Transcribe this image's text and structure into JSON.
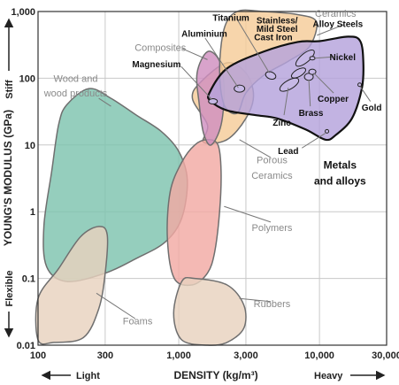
{
  "chart_data": {
    "type": "area",
    "title": "",
    "xlabel": "DENSITY (kg/m³)",
    "ylabel": "YOUNG'S MODULUS (GPa)",
    "x_scale": "log",
    "y_scale": "log",
    "xlim": [
      100,
      30000
    ],
    "ylim": [
      0.01,
      1000
    ],
    "grid": true,
    "x_ticks": [
      {
        "value": 100,
        "label": "100"
      },
      {
        "value": 300,
        "label": "300"
      },
      {
        "value": 1000,
        "label": "1,000"
      },
      {
        "value": 3000,
        "label": "3,000"
      },
      {
        "value": 10000,
        "label": "10,000"
      },
      {
        "value": 30000,
        "label": "30,000"
      }
    ],
    "y_ticks": [
      {
        "value": 1000,
        "label": "1,000"
      },
      {
        "value": 100,
        "label": "100"
      },
      {
        "value": 10,
        "label": "10"
      },
      {
        "value": 1,
        "label": "1"
      },
      {
        "value": 0.1,
        "label": "0.1"
      },
      {
        "value": 0.01,
        "label": "0.01"
      }
    ],
    "axis_words": {
      "stiff": "Stiff",
      "flexible": "Flexible",
      "light": "Light",
      "heavy": "Heavy"
    },
    "series": [
      {
        "name": "Wood and wood products",
        "color": "#7ec3ae",
        "points": [
          [
            160,
            40
          ],
          [
            230,
            70
          ],
          [
            330,
            50
          ],
          [
            500,
            28
          ],
          [
            750,
            16
          ],
          [
            1000,
            8
          ],
          [
            1150,
            3
          ],
          [
            1050,
            0.8
          ],
          [
            800,
            0.35
          ],
          [
            500,
            0.2
          ],
          [
            300,
            0.12
          ],
          [
            160,
            0.09
          ],
          [
            115,
            0.15
          ],
          [
            110,
            0.6
          ],
          [
            125,
            4
          ],
          [
            140,
            20
          ]
        ]
      },
      {
        "name": "Foams",
        "color": "#e8d2be",
        "points": [
          [
            100,
            0.05
          ],
          [
            140,
            0.14
          ],
          [
            200,
            0.42
          ],
          [
            270,
            0.6
          ],
          [
            310,
            0.45
          ],
          [
            300,
            0.12
          ],
          [
            270,
            0.035
          ],
          [
            210,
            0.013
          ],
          [
            130,
            0.011
          ],
          [
            100,
            0.012
          ]
        ]
      },
      {
        "name": "Porous Ceramics",
        "color": "#f5cc98",
        "points": [
          [
            1600,
            20
          ],
          [
            1250,
            50
          ],
          [
            1450,
            90
          ],
          [
            2200,
            170
          ],
          [
            3000,
            120
          ],
          [
            3400,
            55
          ],
          [
            3000,
            25
          ],
          [
            2200,
            12
          ],
          [
            1500,
            11
          ]
        ]
      },
      {
        "name": "Polymers",
        "color": "#f2aaa3",
        "points": [
          [
            1300,
            10
          ],
          [
            1600,
            12
          ],
          [
            1900,
            10
          ],
          [
            2000,
            4
          ],
          [
            1950,
            1
          ],
          [
            1800,
            0.25
          ],
          [
            1600,
            0.12
          ],
          [
            1250,
            0.08
          ],
          [
            930,
            0.1
          ],
          [
            830,
            0.4
          ],
          [
            870,
            2
          ],
          [
            1050,
            5.5
          ]
        ]
      },
      {
        "name": "Rubbers",
        "color": "#e8d2be",
        "points": [
          [
            1050,
            0.09
          ],
          [
            1300,
            0.1
          ],
          [
            2200,
            0.08
          ],
          [
            2900,
            0.04
          ],
          [
            2900,
            0.018
          ],
          [
            2200,
            0.011
          ],
          [
            1600,
            0.01
          ],
          [
            1050,
            0.012
          ],
          [
            920,
            0.03
          ]
        ]
      },
      {
        "name": "Composites",
        "color": "#cf8fc0",
        "points": [
          [
            1400,
            40
          ],
          [
            1350,
            120
          ],
          [
            1600,
            250
          ],
          [
            1950,
            180
          ],
          [
            2100,
            70
          ],
          [
            2000,
            20
          ],
          [
            1700,
            10
          ],
          [
            1500,
            15
          ]
        ]
      },
      {
        "name": "Ceramics",
        "color": "#f5cc98",
        "points": [
          [
            1950,
            130
          ],
          [
            2100,
            550
          ],
          [
            2600,
            1000
          ],
          [
            4000,
            1000
          ],
          [
            7000,
            900
          ],
          [
            9500,
            700
          ],
          [
            8500,
            300
          ],
          [
            6000,
            180
          ],
          [
            4000,
            110
          ],
          [
            3000,
            60
          ],
          [
            2600,
            30
          ],
          [
            2100,
            40
          ]
        ]
      },
      {
        "name": "Metals and alloys",
        "color": "#b4a2dc",
        "points": [
          [
            1650,
            60
          ],
          [
            2200,
            140
          ],
          [
            4000,
            250
          ],
          [
            7000,
            350
          ],
          [
            10000,
            360
          ],
          [
            16000,
            420
          ],
          [
            19500,
            360
          ],
          [
            20500,
            170
          ],
          [
            20000,
            70
          ],
          [
            17000,
            25
          ],
          [
            13000,
            14
          ],
          [
            11000,
            12
          ],
          [
            8000,
            17
          ],
          [
            5000,
            25
          ],
          [
            3500,
            28
          ],
          [
            2200,
            33
          ],
          [
            1700,
            45
          ]
        ]
      }
    ],
    "metal_markers": [
      {
        "name": "Titanium",
        "x": 4500,
        "y": 110,
        "rx": 6,
        "ry": 4,
        "angle": 20
      },
      {
        "name": "Aluminium",
        "x": 2700,
        "y": 70,
        "rx": 6,
        "ry": 4,
        "angle": 0
      },
      {
        "name": "Magnesium",
        "x": 1750,
        "y": 45,
        "rx": 5,
        "ry": 3,
        "angle": 0
      },
      {
        "name": "Stainless/ Mild Steel",
        "x": 7900,
        "y": 200,
        "rx": 13,
        "ry": 5,
        "angle": -40
      },
      {
        "name": "Cast Iron",
        "x": 7100,
        "y": 120,
        "rx": 9,
        "ry": 4,
        "angle": -30
      },
      {
        "name": "Zinc",
        "x": 6100,
        "y": 80,
        "rx": 12,
        "ry": 5,
        "angle": -30
      },
      {
        "name": "Brass",
        "x": 8400,
        "y": 105,
        "rx": 5,
        "ry": 4,
        "angle": 0
      },
      {
        "name": "Copper",
        "x": 8900,
        "y": 125,
        "rx": 4,
        "ry": 3,
        "angle": 0
      },
      {
        "name": "Nickel",
        "x": 8900,
        "y": 200,
        "rx": 3,
        "ry": 2,
        "angle": 0
      },
      {
        "name": "Gold",
        "x": 19300,
        "y": 80,
        "rx": 2,
        "ry": 2,
        "angle": 0
      },
      {
        "name": "Lead",
        "x": 11300,
        "y": 16,
        "rx": 2,
        "ry": 2,
        "angle": 0
      }
    ],
    "annotations": [
      {
        "text": "Wood and",
        "style": "grey",
        "x": 185,
        "y": 100
      },
      {
        "text": "wood products",
        "style": "grey",
        "x": 185,
        "y": 60
      },
      {
        "text": "Composites",
        "style": "grey",
        "x": 740,
        "y": 290
      },
      {
        "text": "Porous",
        "style": "grey",
        "x": 4600,
        "y": 6.0
      },
      {
        "text": "Ceramics",
        "style": "grey",
        "x": 4600,
        "y": 3.5
      },
      {
        "text": "Polymers",
        "style": "grey",
        "x": 4600,
        "y": 0.58
      },
      {
        "text": "Rubbers",
        "style": "grey",
        "x": 4600,
        "y": 0.042
      },
      {
        "text": "Foams",
        "style": "grey",
        "x": 510,
        "y": 0.023
      },
      {
        "text": "Ceramics",
        "style": "grey",
        "x": 13000,
        "y": 940
      },
      {
        "text": "Alloy Steels",
        "style": "dark",
        "x": 13500,
        "y": 660
      },
      {
        "text": "Titanium",
        "style": "dark",
        "x": 2350,
        "y": 820
      },
      {
        "text": "Stainless/",
        "style": "dark",
        "x": 5000,
        "y": 750
      },
      {
        "text": "Mild Steel",
        "style": "dark",
        "x": 5000,
        "y": 560
      },
      {
        "text": "Cast Iron",
        "style": "dark",
        "x": 4700,
        "y": 420
      },
      {
        "text": "Aluminium",
        "style": "dark",
        "x": 1520,
        "y": 470
      },
      {
        "text": "Magnesium",
        "style": "dark",
        "x": 695,
        "y": 165
      },
      {
        "text": "Nickel",
        "style": "dark",
        "x": 14600,
        "y": 210
      },
      {
        "text": "Copper",
        "style": "dark",
        "x": 12500,
        "y": 50
      },
      {
        "text": "Gold",
        "style": "dark",
        "x": 23500,
        "y": 37
      },
      {
        "text": "Brass",
        "style": "dark",
        "x": 8700,
        "y": 31
      },
      {
        "text": "Zinc",
        "style": "dark",
        "x": 5400,
        "y": 22
      },
      {
        "text": "Lead",
        "style": "dark",
        "x": 6000,
        "y": 8.3
      },
      {
        "text": "Metals",
        "style": "big",
        "x": 14000,
        "y": 5.0
      },
      {
        "text": "and alloys",
        "style": "big",
        "x": 14000,
        "y": 2.9
      }
    ],
    "leaders": [
      {
        "from": [
          2600,
          760
        ],
        "to": [
          4400,
          120
        ]
      },
      {
        "from": [
          1540,
          400
        ],
        "to": [
          2650,
          72
        ]
      },
      {
        "from": [
          1040,
          150
        ],
        "to": [
          1720,
          48
        ]
      },
      {
        "from": [
          1050,
          280
        ],
        "to": [
          1600,
          190
        ]
      },
      {
        "from": [
          12800,
          210
        ],
        "to": [
          9300,
          200
        ]
      },
      {
        "from": [
          12600,
          60
        ],
        "to": [
          9100,
          120
        ]
      },
      {
        "from": [
          23000,
          45
        ],
        "to": [
          19500,
          75
        ]
      },
      {
        "from": [
          8600,
          38
        ],
        "to": [
          8400,
          95
        ]
      },
      {
        "from": [
          5600,
          28
        ],
        "to": [
          6000,
          72
        ]
      },
      {
        "from": [
          7500,
          9
        ],
        "to": [
          11000,
          15
        ]
      },
      {
        "from": [
          15000,
          640
        ],
        "to": [
          9600,
          440
        ]
      },
      {
        "from": [
          4500,
          6.5
        ],
        "to": [
          2700,
          12
        ]
      },
      {
        "from": [
          4500,
          0.7
        ],
        "to": [
          2100,
          1.2
        ]
      },
      {
        "from": [
          4500,
          0.045
        ],
        "to": [
          2700,
          0.05
        ]
      },
      {
        "from": [
          490,
          0.025
        ],
        "to": [
          260,
          0.06
        ]
      },
      {
        "from": [
          270,
          50
        ],
        "to": [
          330,
          38
        ]
      }
    ]
  }
}
